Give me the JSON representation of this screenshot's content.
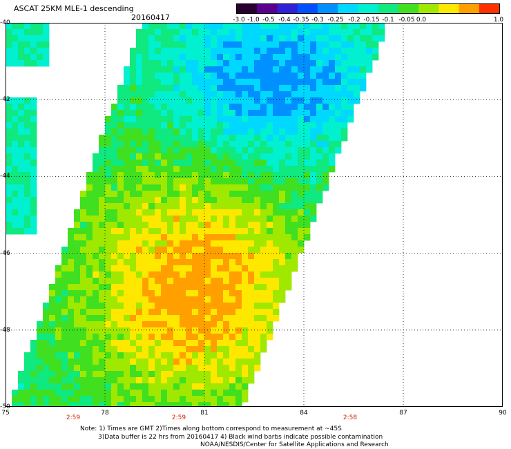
{
  "header": {
    "title": "ASCAT 25KM MLE-1 descending",
    "date": "20160417"
  },
  "colorbar": {
    "labels": [
      "-3.0",
      "-1.0",
      "-0.5",
      "-0.4",
      "-0.35",
      "-0.3",
      "-0.25",
      "-0.2",
      "-0.15",
      "-0.1",
      "-0.05",
      "0.0",
      "1.0"
    ],
    "colors": [
      "#2a0030",
      "#5a0090",
      "#3020d8",
      "#0050ff",
      "#0090ff",
      "#00d8ff",
      "#00f0d0",
      "#10e880",
      "#40e020",
      "#a0e800",
      "#ffe800",
      "#ffa000",
      "#ff3000"
    ]
  },
  "axes": {
    "lat_labels": [
      "-40",
      "-42",
      "-44",
      "-46",
      "-48",
      "-50"
    ],
    "lon_labels": [
      "75",
      "78",
      "81",
      "84",
      "87",
      "90"
    ],
    "lat_range": [
      -50,
      -40
    ],
    "lon_range": [
      75,
      90
    ]
  },
  "pass_times": [
    "2:59",
    "2:59",
    "2:58"
  ],
  "notes": {
    "line1": "Note: 1) Times are GMT 2)Times along bottom correspond to measurement at ~45S",
    "line2": "3)Data buffer is 22 hrs from 20160417 4) Black wind barbs indicate possible contamination",
    "line3": "NOAA/NESDIS/Center for Satellite Applications and Research"
  }
}
